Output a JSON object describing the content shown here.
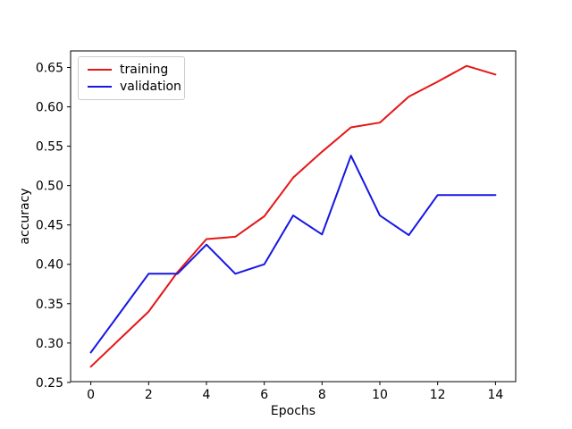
{
  "figure": {
    "background": "#ffffff",
    "frame_color": "#000000"
  },
  "chart_data": {
    "type": "line",
    "title": "",
    "xlabel": "Epochs",
    "ylabel": "accuracy",
    "x": [
      0,
      1,
      2,
      3,
      4,
      5,
      6,
      7,
      8,
      9,
      10,
      11,
      12,
      13,
      14
    ],
    "series": [
      {
        "name": "training",
        "color": "#e51616",
        "values": [
          0.27,
          0.305,
          0.34,
          0.39,
          0.432,
          0.435,
          0.461,
          0.51,
          0.543,
          0.574,
          0.58,
          0.613,
          0.632,
          0.652,
          0.641
        ]
      },
      {
        "name": "validation",
        "color": "#1616e5",
        "values": [
          0.288,
          0.338,
          0.388,
          0.388,
          0.425,
          0.388,
          0.4,
          0.462,
          0.438,
          0.538,
          0.462,
          0.437,
          0.488,
          0.488,
          0.488
        ]
      }
    ],
    "xlim": [
      -0.7,
      14.7
    ],
    "ylim": [
      0.251,
      0.671
    ],
    "xticks": {
      "values": [
        0,
        2,
        4,
        6,
        8,
        10,
        12,
        14
      ],
      "labels": [
        "0",
        "2",
        "4",
        "6",
        "8",
        "10",
        "12",
        "14"
      ]
    },
    "yticks": {
      "values": [
        0.25,
        0.3,
        0.35,
        0.4,
        0.45,
        0.5,
        0.55,
        0.6,
        0.65
      ],
      "labels": [
        "0.25",
        "0.30",
        "0.35",
        "0.40",
        "0.45",
        "0.50",
        "0.55",
        "0.60",
        "0.65"
      ]
    },
    "grid": false,
    "legend": {
      "position": "upper-left",
      "entries": [
        "training",
        "validation"
      ]
    }
  }
}
